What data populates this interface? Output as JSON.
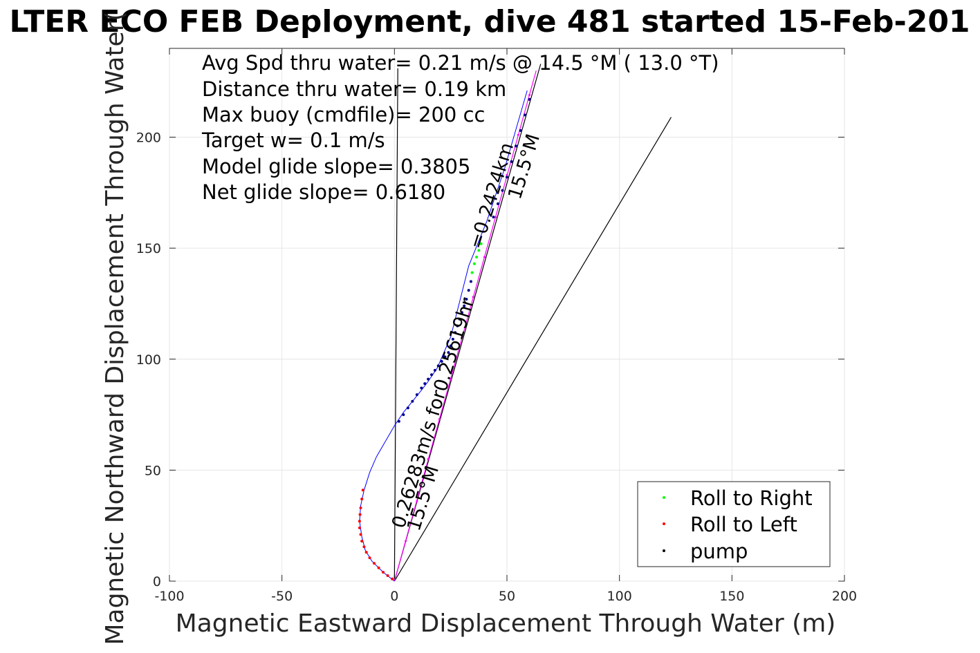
{
  "chart_data": {
    "type": "scatter",
    "title": "LTER ECO FEB Deployment, dive 481 started 15-Feb-201",
    "xlabel": "Magnetic Eastward Displacement Through Water (m)",
    "ylabel": "Magnetic Northward Displacement Through Water(",
    "xlim": [
      -100,
      200
    ],
    "ylim": [
      0,
      240
    ],
    "xticks": [
      -100,
      -50,
      0,
      50,
      100,
      150,
      200
    ],
    "yticks": [
      0,
      50,
      100,
      150,
      200
    ],
    "grid": true,
    "annotations": [
      "Avg Spd thru water=  0.21 m/s @  14.5 °M ( 13.0 °T)",
      "Distance thru water=  0.19 km",
      "Max buoy (cmdfile)= 200 cc",
      "Target w= 0.1 m/s",
      "Model glide slope= 0.3805",
      "Net glide slope= 0.6180"
    ],
    "path_labels": {
      "upper_dist": "=0.2424km",
      "upper_heading": "15.5°M",
      "mid_speed": "0.26283m/s for0.25619hr",
      "lower_heading": "15.5°M"
    },
    "legend": {
      "location": "bottom-right",
      "entries": [
        {
          "label": "Roll to Right",
          "color": "#00ff00"
        },
        {
          "label": "Roll to Left",
          "color": "#ff0000"
        },
        {
          "label": "pump",
          "color": "#000000"
        }
      ]
    },
    "lines": [
      {
        "name": "",
        "color": "#000000",
        "x": [
          0,
          1.5
        ],
        "y": [
          0,
          231
        ]
      },
      {
        "name": "",
        "color": "#000000",
        "x": [
          0,
          65
        ],
        "y": [
          0,
          233
        ]
      },
      {
        "name": "",
        "color": "#000000",
        "x": [
          0,
          123
        ],
        "y": [
          0,
          209
        ]
      },
      {
        "name": "",
        "color": "#ff00ff",
        "x": [
          0,
          63
        ],
        "y": [
          0,
          230
        ]
      }
    ],
    "track": {
      "color": "#0000ff",
      "x": [
        0,
        -5,
        -10,
        -13,
        -14.5,
        -15.5,
        -15,
        -13.5,
        -11,
        -8,
        -4,
        0,
        4,
        8,
        12,
        15,
        17,
        19,
        22,
        25,
        27,
        29,
        31,
        33,
        35,
        37,
        39,
        41,
        43,
        45,
        47,
        49,
        51,
        53,
        55,
        57,
        59
      ],
      "y": [
        0,
        4,
        9,
        14,
        20,
        27,
        34,
        41,
        49,
        56,
        63,
        70,
        76,
        81,
        86,
        90,
        93,
        96,
        103,
        110,
        118,
        126,
        134,
        142,
        147,
        152,
        157,
        162,
        168,
        174,
        180,
        186,
        193,
        200,
        207,
        214,
        221
      ]
    },
    "red_dots": {
      "color": "#ff0000",
      "x": [
        -1,
        -3,
        -5,
        -7,
        -9,
        -11,
        -12.5,
        -13.5,
        -14.5,
        -15,
        -15.5,
        -15.5,
        -15.3,
        -15,
        -14.5,
        -14
      ],
      "y": [
        1,
        2.5,
        4,
        6,
        8,
        10.5,
        13,
        15.5,
        18,
        21,
        24,
        27,
        30,
        33,
        37,
        41
      ]
    },
    "navy_dots": {
      "color": "#00008b",
      "x": [
        2,
        4,
        6,
        8,
        10,
        12,
        13.5,
        15,
        16.5,
        18,
        19.5,
        21,
        22.5,
        24,
        25,
        26,
        27,
        28,
        29,
        30,
        31,
        32,
        33,
        34,
        44,
        46,
        48,
        50,
        52,
        54,
        56,
        58,
        60
      ],
      "y": [
        72,
        75,
        78,
        81,
        84,
        87,
        89,
        91,
        93,
        95,
        97,
        99,
        101,
        103,
        106,
        109,
        112,
        115,
        118,
        121,
        124,
        127,
        131,
        135,
        164,
        170,
        176,
        182,
        189,
        196,
        203,
        210,
        217
      ]
    },
    "green_dots": {
      "color": "#00ff00",
      "x": [
        34.5,
        35.5,
        36.5,
        37.5,
        38.5
      ],
      "y": [
        139,
        143,
        146,
        149,
        152
      ]
    },
    "magenta_dots": {
      "color": "#ff00ff",
      "x": [
        5,
        10,
        15,
        20,
        25,
        30,
        35,
        40,
        45,
        50,
        55,
        60
      ],
      "y": [
        18,
        36,
        55,
        73,
        91,
        110,
        128,
        146,
        164,
        183,
        201,
        219
      ]
    }
  }
}
